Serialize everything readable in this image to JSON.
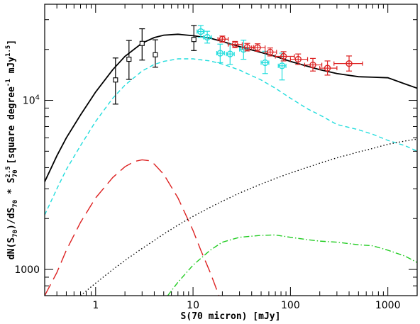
{
  "chart_data": {
    "type": "line",
    "xlabel": "S(70 micron) [mJy]",
    "ylabel_parts": {
      "main": "dN(S",
      "main_sub": "70",
      "mid": ")/dS",
      "mid_sub": "70",
      "star": " * S",
      "s_sup": "2.5",
      "s_sub": "70",
      "units": " [square degree",
      "units_sup": "-1",
      "units2": " mJy",
      "units2_sup": "1.5",
      "end": "]"
    },
    "x_scale": "log",
    "y_scale": "log",
    "xlim": [
      0.3,
      2000
    ],
    "ylim": [
      700,
      37000
    ],
    "x_ticks": [
      {
        "value": 1,
        "label": "1"
      },
      {
        "value": 10,
        "label": "10"
      },
      {
        "value": 100,
        "label": "100"
      },
      {
        "value": 1000,
        "label": "1000"
      }
    ],
    "y_ticks": [
      {
        "value": 1000,
        "label": "1000",
        "sup": ""
      },
      {
        "value": 10000,
        "label": "10",
        "sup": "4"
      }
    ],
    "grid": false,
    "series": [
      {
        "style": "solid",
        "color": "#000000",
        "x": [
          0.3,
          0.4,
          0.5,
          0.7,
          1.0,
          1.5,
          2,
          3,
          4,
          5,
          7,
          10,
          15,
          20,
          30,
          50,
          70,
          100,
          150,
          200,
          300,
          500,
          700,
          1000,
          1500,
          2000
        ],
        "y": [
          3300,
          4700,
          6000,
          8200,
          11200,
          15200,
          18200,
          21800,
          23500,
          24300,
          24600,
          24100,
          23300,
          22300,
          20800,
          19200,
          18200,
          17000,
          15900,
          15200,
          14400,
          13800,
          13700,
          13600,
          12500,
          11800
        ]
      },
      {
        "style": "dashed",
        "color": "#22dddd",
        "x": [
          0.3,
          0.4,
          0.5,
          0.7,
          1.0,
          1.5,
          2,
          3,
          4,
          5,
          7,
          10,
          15,
          20,
          30,
          50,
          70,
          100,
          150,
          200,
          300,
          500,
          700,
          1000,
          1500,
          2000
        ],
        "y": [
          2100,
          3000,
          3900,
          5400,
          7500,
          10300,
          12300,
          14900,
          16300,
          17000,
          17600,
          17600,
          17100,
          16400,
          15100,
          13200,
          11800,
          10300,
          8900,
          8200,
          7200,
          6700,
          6300,
          5800,
          5400,
          5000
        ]
      },
      {
        "style": "longdash",
        "color": "#dd2222",
        "x": [
          0.3,
          0.4,
          0.5,
          0.7,
          1.0,
          1.5,
          2,
          2.5,
          3,
          3.5,
          4,
          5,
          7,
          10,
          12,
          15,
          20
        ],
        "y": [
          700,
          960,
          1300,
          1900,
          2650,
          3500,
          4050,
          4350,
          4450,
          4400,
          4200,
          3650,
          2650,
          1700,
          1300,
          960,
          620
        ]
      },
      {
        "style": "dotted",
        "color": "#000000",
        "x": [
          0.7,
          1.0,
          1.5,
          2,
          3,
          5,
          7,
          10,
          15,
          20,
          30,
          50,
          70,
          100,
          150,
          200,
          300,
          500,
          700,
          1000,
          1500,
          2000
        ],
        "y": [
          700,
          830,
          1000,
          1130,
          1330,
          1620,
          1830,
          2060,
          2330,
          2530,
          2830,
          3200,
          3450,
          3720,
          4020,
          4250,
          4570,
          4950,
          5200,
          5500,
          5750,
          5900
        ]
      },
      {
        "style": "dashdot",
        "color": "#22cc22",
        "x": [
          5.5,
          7,
          10,
          15,
          20,
          30,
          50,
          70,
          100,
          150,
          200,
          300,
          500,
          700,
          1000,
          1500,
          2000
        ],
        "y": [
          700,
          840,
          1060,
          1300,
          1450,
          1550,
          1590,
          1600,
          1550,
          1500,
          1470,
          1450,
          1400,
          1380,
          1300,
          1200,
          1100
        ]
      }
    ],
    "points": [
      {
        "marker": "square",
        "color": "#000000",
        "x": [
          1.6,
          2.2,
          3.0,
          4.1,
          10.2
        ],
        "y": [
          13200,
          17500,
          21700,
          18600,
          22900
        ],
        "yerr_low": [
          9500,
          13300,
          17300,
          15700,
          19700
        ],
        "yerr_high": [
          17800,
          22600,
          26500,
          22800,
          27700
        ]
      },
      {
        "marker": "circle",
        "color": "#22dddd",
        "x": [
          12,
          14,
          19,
          24,
          33,
          55,
          82
        ],
        "y": [
          25500,
          23600,
          19000,
          18800,
          20000,
          16700,
          16000
        ],
        "yerr_low": [
          23600,
          21800,
          16700,
          16300,
          17500,
          14400,
          13200
        ],
        "yerr_high": [
          27700,
          25600,
          21500,
          21500,
          22700,
          19500,
          19000
        ],
        "xerr_low": [
          11,
          12.8,
          17.5,
          22,
          30,
          50,
          75
        ],
        "xerr_high": [
          13,
          15.5,
          21,
          26.5,
          37,
          60,
          90
        ]
      },
      {
        "marker": "circle",
        "color": "#dd2222",
        "x": [
          20,
          27,
          36,
          46,
          62,
          85,
          120,
          170,
          240,
          400
        ],
        "y": [
          23000,
          21400,
          20600,
          20500,
          19300,
          18200,
          17500,
          16200,
          15500,
          16500
        ],
        "yerr_low": [
          22100,
          20500,
          19600,
          19500,
          18300,
          17100,
          16300,
          14900,
          14100,
          14900
        ],
        "yerr_high": [
          24000,
          22300,
          21700,
          21600,
          20400,
          19400,
          18800,
          17700,
          17100,
          18300
        ],
        "xerr_low": [
          18,
          23,
          32,
          40,
          55,
          70,
          100,
          140,
          200,
          280
        ],
        "xerr_high": [
          23,
          32,
          42,
          55,
          72,
          110,
          150,
          210,
          300,
          550
        ]
      }
    ]
  }
}
